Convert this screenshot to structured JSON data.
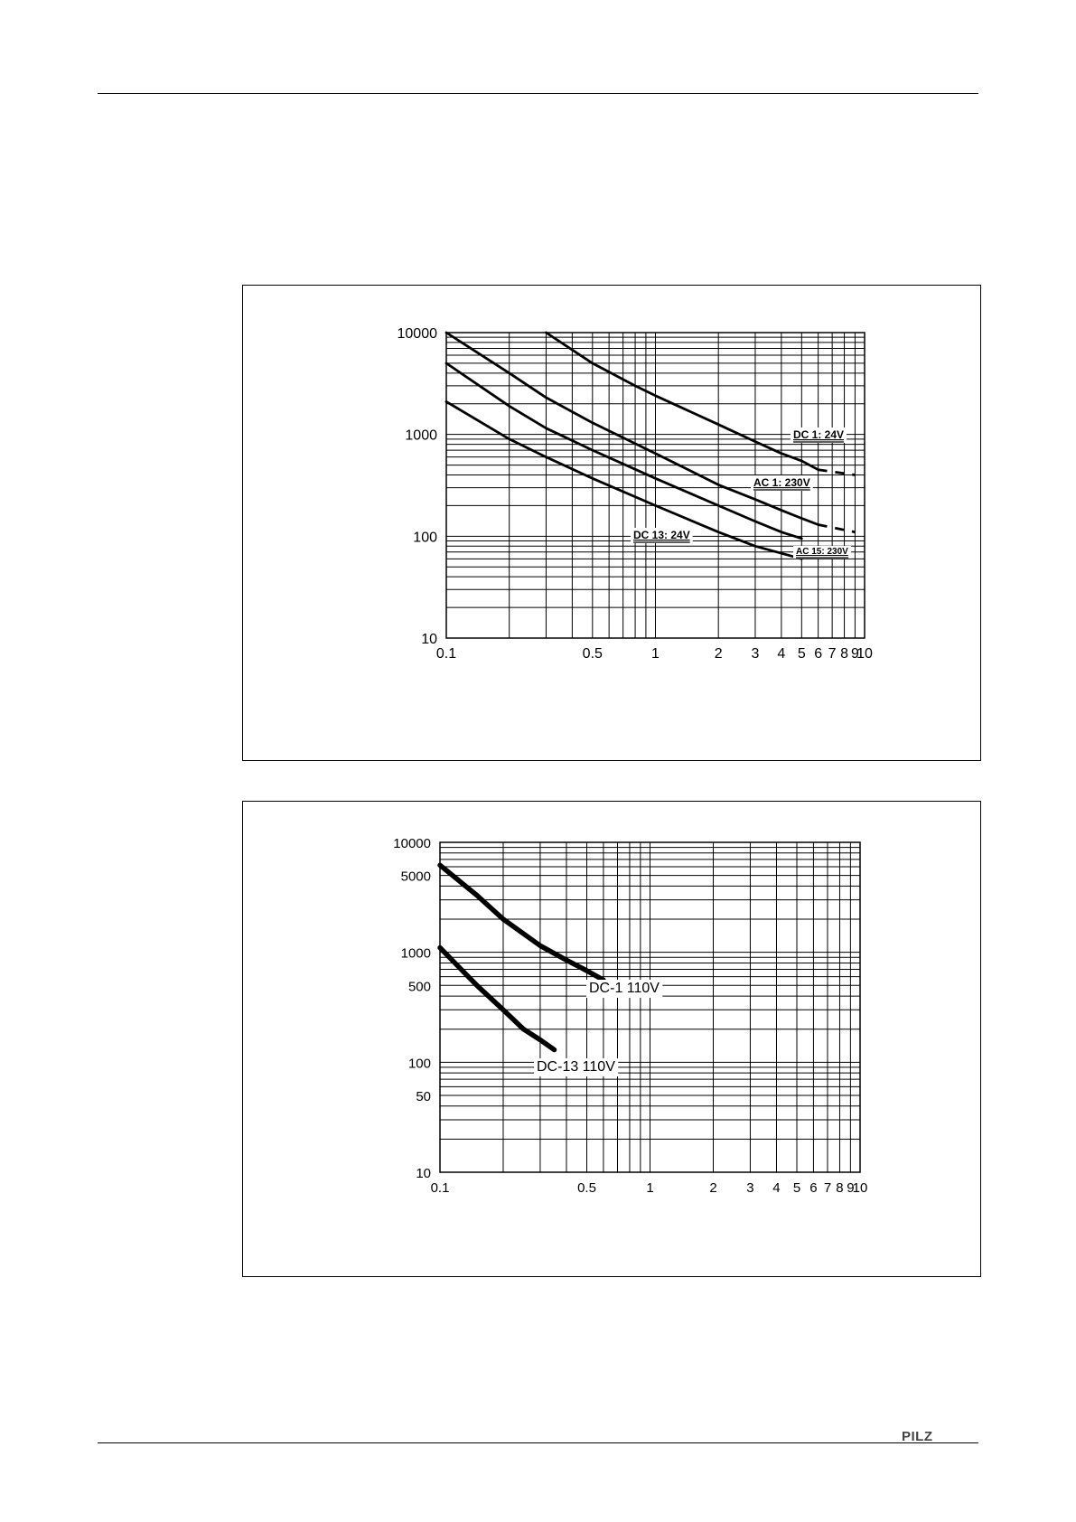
{
  "brand": {
    "logo_text": "PILZ"
  },
  "chart_data": [
    {
      "type": "line",
      "xscale": "log",
      "yscale": "log",
      "xlim": [
        0.1,
        10
      ],
      "ylim": [
        10,
        10000
      ],
      "grid": true,
      "x_ticks": [
        0.1,
        0.5,
        1,
        2,
        3,
        4,
        5,
        6,
        7,
        8,
        9,
        10
      ],
      "x_tick_labels": [
        "0.1",
        "0.5",
        "1",
        "2",
        "3",
        "4",
        "5",
        "6",
        "7",
        "8",
        "9",
        "10"
      ],
      "y_ticks": [
        10,
        100,
        1000,
        10000
      ],
      "y_tick_labels": [
        "10",
        "100",
        "1000",
        "10000"
      ],
      "series": [
        {
          "name": "DC 1: 24V",
          "style": "bold-underline",
          "x": [
            0.3,
            0.5,
            0.8,
            1,
            2,
            3,
            4,
            5,
            6
          ],
          "y": [
            10000,
            5000,
            3000,
            2400,
            1250,
            850,
            650,
            550,
            450
          ],
          "dash_x": [
            6,
            9
          ],
          "dash_y": [
            450,
            400
          ]
        },
        {
          "name": "AC 1: 230V",
          "style": "bold-underline",
          "x": [
            0.1,
            0.2,
            0.3,
            0.5,
            1,
            2,
            3,
            4,
            5,
            6
          ],
          "y": [
            10000,
            4000,
            2300,
            1300,
            650,
            320,
            230,
            180,
            150,
            130
          ],
          "dash_x": [
            6,
            9
          ],
          "dash_y": [
            130,
            110
          ]
        },
        {
          "name": "DC 13: 24V",
          "style": "bold-underline",
          "x": [
            0.1,
            0.2,
            0.3,
            0.5,
            1,
            2,
            3,
            4,
            5
          ],
          "y": [
            5000,
            1900,
            1150,
            700,
            370,
            200,
            140,
            110,
            95
          ]
        },
        {
          "name": "AC 15: 230V",
          "style": "bold-underline-small",
          "x": [
            0.1,
            0.2,
            0.3,
            0.5,
            1,
            2,
            3,
            4,
            5
          ],
          "y": [
            2100,
            900,
            600,
            370,
            200,
            110,
            80,
            68,
            60
          ]
        }
      ]
    },
    {
      "type": "line",
      "xscale": "log",
      "yscale": "log",
      "xlim": [
        0.1,
        10
      ],
      "ylim": [
        10,
        10000
      ],
      "grid": true,
      "x_ticks": [
        0.1,
        0.5,
        1,
        2,
        3,
        4,
        5,
        6,
        7,
        8,
        9,
        10
      ],
      "x_tick_labels": [
        "0.1",
        "0.5",
        "1",
        "2",
        "3",
        "4",
        "5",
        "6",
        "7",
        "8",
        "9",
        "10"
      ],
      "y_ticks": [
        10,
        50,
        100,
        500,
        1000,
        5000,
        10000
      ],
      "y_tick_labels": [
        "10",
        "50",
        "100",
        "500",
        "1000",
        "5000",
        "10000"
      ],
      "series": [
        {
          "name": "DC-1 110V",
          "style": "plain",
          "x": [
            0.1,
            0.15,
            0.2,
            0.3,
            0.4,
            0.5,
            0.6
          ],
          "y": [
            6200,
            3300,
            2000,
            1150,
            850,
            680,
            560
          ]
        },
        {
          "name": "DC-13 110V",
          "style": "plain",
          "x": [
            0.1,
            0.15,
            0.2,
            0.25,
            0.3,
            0.35
          ],
          "y": [
            1100,
            500,
            300,
            200,
            160,
            130
          ]
        }
      ]
    }
  ]
}
